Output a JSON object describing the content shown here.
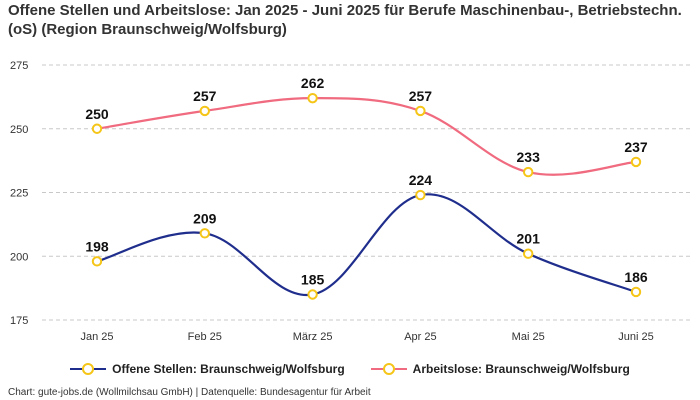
{
  "chart_data": {
    "type": "line",
    "title": "Offene Stellen und Arbeitslose: Jan 2025 - Juni 2025 für Berufe Maschinenbau-, Betriebstechn.(oS) (Region Braunschweig/Wolfsburg)",
    "categories": [
      "Jan 25",
      "Feb 25",
      "März 25",
      "Apr 25",
      "Mai 25",
      "Juni 25"
    ],
    "yticks": [
      "175",
      "200",
      "225",
      "250",
      "275"
    ],
    "ylim": [
      175,
      275
    ],
    "grid": true,
    "legend_position": "bottom",
    "series": [
      {
        "name": "Offene Stellen: Braunschweig/Wolfsburg",
        "values": [
          198,
          209,
          185,
          224,
          201,
          186
        ],
        "color": "#1f2e8c",
        "marker_color": "#f5c518"
      },
      {
        "name": "Arbeitslose: Braunschweig/Wolfsburg",
        "values": [
          250,
          257,
          262,
          257,
          233,
          237
        ],
        "color": "#f06b7f",
        "marker_color": "#f5c518"
      }
    ]
  },
  "footer": "Chart: gute-jobs.de (Wollmilchsau GmbH) | Datenquelle: Bundesagentur für Arbeit"
}
